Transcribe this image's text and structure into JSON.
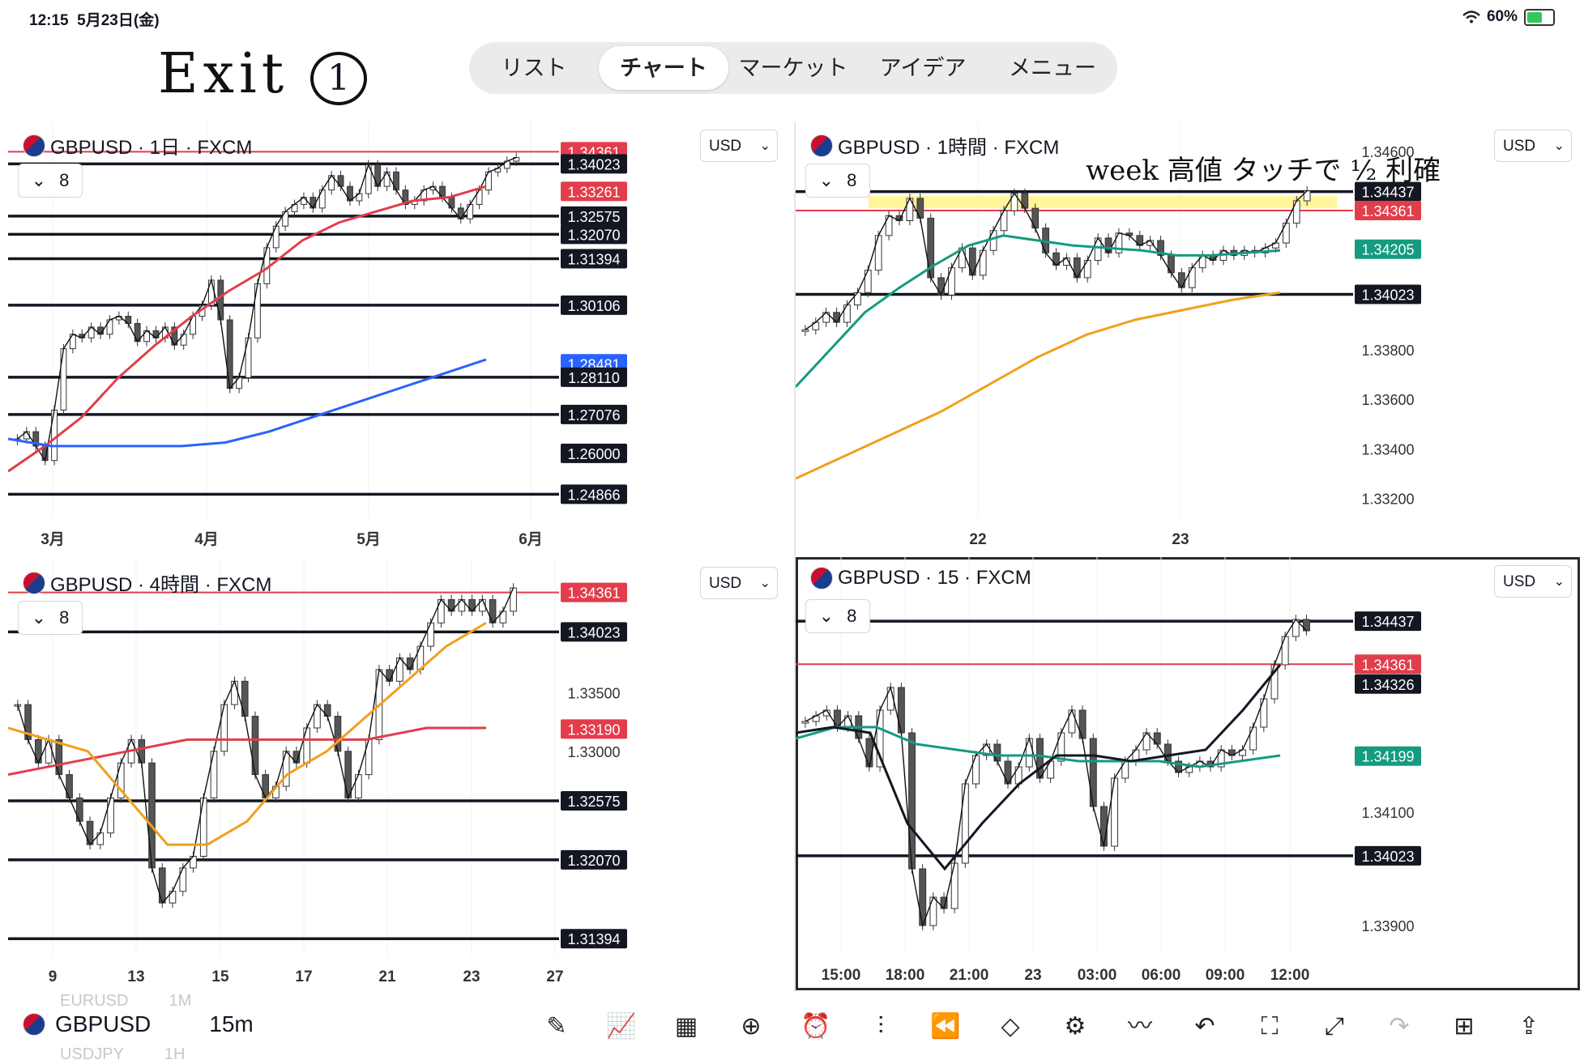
{
  "status": {
    "time": "12:15",
    "date": "5月23日(金)",
    "battery": "60%",
    "battery_level": 0.6
  },
  "annotations": {
    "title": "Exit",
    "circle_number": "1",
    "note": "week 高値 タッチで ½ 利確"
  },
  "tabs": [
    {
      "label": "リスト",
      "active": false
    },
    {
      "label": "チャート",
      "active": true
    },
    {
      "label": "マーケット",
      "active": false
    },
    {
      "label": "アイデア",
      "active": false
    },
    {
      "label": "メニュー",
      "active": false
    }
  ],
  "panels": [
    {
      "header": "GBPUSD · 1日 · FXCM",
      "currency": "USD",
      "collapse_count": "8"
    },
    {
      "header": "GBPUSD · 1時間 · FXCM",
      "currency": "USD",
      "collapse_count": "8"
    },
    {
      "header": "GBPUSD · 4時間 · FXCM",
      "currency": "USD",
      "collapse_count": "8"
    },
    {
      "header": "GBPUSD · 15 · FXCM",
      "currency": "USD",
      "collapse_count": "8"
    }
  ],
  "chart_data": [
    {
      "type": "candlestick",
      "title": "GBPUSD · 1日 · FXCM",
      "x_ticks": [
        "3月",
        "4月",
        "5月",
        "6月"
      ],
      "price_scale_labels": [
        "1.34361",
        "1.34023",
        "1.33261",
        "1.32575",
        "1.32070",
        "1.31394",
        "1.30106",
        "1.28481",
        "1.28110",
        "1.27076",
        "1.26000",
        "1.24866"
      ],
      "horizontal_levels": [
        1.34361,
        1.34023,
        1.32575,
        1.3207,
        1.31394,
        1.30106,
        1.2811,
        1.27076,
        1.24866
      ],
      "ylim": [
        1.242,
        1.352
      ],
      "close": [
        1.264,
        1.266,
        1.262,
        1.258,
        1.272,
        1.289,
        1.293,
        1.292,
        1.295,
        1.293,
        1.297,
        1.298,
        1.296,
        1.291,
        1.294,
        1.292,
        1.295,
        1.29,
        1.293,
        1.298,
        1.301,
        1.308,
        1.297,
        1.278,
        1.281,
        1.292,
        1.307,
        1.317,
        1.323,
        1.327,
        1.329,
        1.331,
        1.328,
        1.333,
        1.337,
        1.334,
        1.33,
        1.332,
        1.34,
        1.334,
        1.338,
        1.333,
        1.329,
        1.33,
        1.333,
        1.334,
        1.331,
        1.328,
        1.325,
        1.329,
        1.333,
        1.338,
        1.339,
        1.341,
        1.342
      ],
      "ma_red": [
        1.255,
        1.262,
        1.27,
        1.281,
        1.29,
        1.298,
        1.305,
        1.311,
        1.319,
        1.324,
        1.327,
        1.33,
        1.331,
        1.334
      ],
      "ma_blue": [
        1.264,
        1.262,
        1.262,
        1.262,
        1.262,
        1.263,
        1.266,
        1.27,
        1.274,
        1.278,
        1.282,
        1.286
      ]
    },
    {
      "type": "candlestick",
      "title": "GBPUSD · 1時間 · FXCM",
      "x_ticks": [
        "22",
        "23"
      ],
      "y_ticks": [
        "1.34600",
        "1.33800",
        "1.33600",
        "1.33400",
        "1.33200"
      ],
      "price_scale_labels": [
        "1.34437",
        "1.34361",
        "1.34205",
        "1.34023"
      ],
      "horizontal_levels": [
        1.34437,
        1.34361,
        1.34023
      ],
      "ylim": [
        1.3312,
        1.3472
      ],
      "close": [
        1.3388,
        1.3391,
        1.3395,
        1.3391,
        1.3398,
        1.3403,
        1.3412,
        1.3426,
        1.3434,
        1.3432,
        1.3441,
        1.3433,
        1.3409,
        1.3402,
        1.3413,
        1.3421,
        1.341,
        1.342,
        1.3428,
        1.3436,
        1.3443,
        1.3437,
        1.3429,
        1.3419,
        1.3414,
        1.3417,
        1.3409,
        1.3416,
        1.3425,
        1.3419,
        1.3427,
        1.3426,
        1.3422,
        1.3424,
        1.3418,
        1.3411,
        1.3405,
        1.3413,
        1.3418,
        1.3416,
        1.342,
        1.3418,
        1.342,
        1.3419,
        1.3421,
        1.3423,
        1.3431,
        1.344,
        1.3444
      ],
      "ma_green": [
        1.3365,
        1.338,
        1.3395,
        1.3405,
        1.3414,
        1.3422,
        1.3426,
        1.3424,
        1.3422,
        1.3421,
        1.342,
        1.3418,
        1.3418,
        1.3419,
        1.342
      ],
      "ma_orange": [
        1.3328,
        1.3337,
        1.3346,
        1.3355,
        1.3366,
        1.3377,
        1.3386,
        1.3392,
        1.3396,
        1.34,
        1.3403
      ]
    },
    {
      "type": "candlestick",
      "title": "GBPUSD · 4時間 · FXCM",
      "x_ticks": [
        "9",
        "13",
        "15",
        "17",
        "21",
        "23",
        "27"
      ],
      "y_ticks": [
        "1.33500",
        "1.33000"
      ],
      "price_scale_labels": [
        "1.34361",
        "1.34023",
        "1.33190",
        "1.32575",
        "1.32070",
        "1.31394"
      ],
      "horizontal_levels": [
        1.34361,
        1.34023,
        1.32575,
        1.3207,
        1.31394
      ],
      "ylim": [
        1.3125,
        1.3465
      ],
      "close": [
        1.334,
        1.331,
        1.329,
        1.331,
        1.328,
        1.326,
        1.324,
        1.322,
        1.323,
        1.326,
        1.329,
        1.331,
        1.329,
        1.32,
        1.317,
        1.318,
        1.32,
        1.321,
        1.326,
        1.33,
        1.334,
        1.336,
        1.333,
        1.328,
        1.326,
        1.327,
        1.33,
        1.329,
        1.332,
        1.334,
        1.333,
        1.33,
        1.326,
        1.328,
        1.331,
        1.337,
        1.336,
        1.338,
        1.337,
        1.339,
        1.341,
        1.343,
        1.342,
        1.343,
        1.342,
        1.343,
        1.341,
        1.342,
        1.344
      ],
      "ma_orange": [
        1.332,
        1.331,
        1.33,
        1.326,
        1.322,
        1.322,
        1.324,
        1.328,
        1.33,
        1.333,
        1.336,
        1.339,
        1.341
      ],
      "ma_red": [
        1.328,
        1.329,
        1.33,
        1.331,
        1.331,
        1.331,
        1.331,
        1.332,
        1.332
      ]
    },
    {
      "type": "candlestick",
      "title": "GBPUSD · 15 · FXCM",
      "x_ticks": [
        "15:00",
        "18:00",
        "21:00",
        "23",
        "03:00",
        "06:00",
        "09:00",
        "12:00"
      ],
      "y_ticks": [
        "1.34100",
        "1.33900"
      ],
      "price_scale_labels": [
        "1.34437",
        "1.34361",
        "1.34326",
        "1.34199",
        "1.34023"
      ],
      "horizontal_levels": [
        1.34437,
        1.34361,
        1.34023
      ],
      "ylim": [
        1.3385,
        1.3455
      ],
      "close": [
        1.3426,
        1.3427,
        1.3428,
        1.3425,
        1.3427,
        1.3423,
        1.3418,
        1.3428,
        1.3432,
        1.3424,
        1.34,
        1.339,
        1.3395,
        1.3393,
        1.3401,
        1.3415,
        1.342,
        1.3422,
        1.3419,
        1.3415,
        1.3418,
        1.3423,
        1.3416,
        1.3419,
        1.3424,
        1.3428,
        1.3423,
        1.3411,
        1.3404,
        1.3416,
        1.3419,
        1.3421,
        1.3424,
        1.3422,
        1.3419,
        1.3417,
        1.3418,
        1.3419,
        1.3418,
        1.3421,
        1.342,
        1.3421,
        1.3425,
        1.343,
        1.3436,
        1.3441,
        1.3444,
        1.3442
      ],
      "ma_green": [
        1.3423,
        1.3425,
        1.3425,
        1.3422,
        1.3421,
        1.342,
        1.342,
        1.3419,
        1.3419,
        1.3419,
        1.3418,
        1.3419,
        1.342
      ],
      "ma_black": [
        1.3424,
        1.3425,
        1.3424,
        1.3408,
        1.34,
        1.3408,
        1.3415,
        1.342,
        1.342,
        1.3419,
        1.342,
        1.3421,
        1.3428,
        1.3436
      ]
    }
  ],
  "bottom": {
    "symbol": "GBPUSD",
    "timeframe": "15m",
    "ghost_prev": "EURUSD",
    "ghost_prev_tf": "1M",
    "ghost_next": "USDJPY",
    "ghost_next_tf": "1H"
  },
  "toolbar": [
    {
      "name": "draw-tool-icon",
      "glyph": "✎"
    },
    {
      "name": "indicators-icon",
      "glyph": "📈"
    },
    {
      "name": "layout-grid-icon",
      "glyph": "▦"
    },
    {
      "name": "add-icon",
      "glyph": "⊕"
    },
    {
      "name": "alert-icon",
      "glyph": "⏰"
    },
    {
      "name": "chart-type-icon",
      "glyph": "⫶"
    },
    {
      "name": "replay-icon",
      "glyph": "⏪"
    },
    {
      "name": "layers-icon",
      "glyph": "◇"
    },
    {
      "name": "settings-sliders-icon",
      "glyph": "⚙"
    },
    {
      "name": "trend-tool-icon",
      "glyph": "〰"
    },
    {
      "name": "undo-icon",
      "glyph": "↶"
    },
    {
      "name": "fullscreen-icon",
      "glyph": "⛶"
    },
    {
      "name": "expand-icon",
      "glyph": "⤢"
    },
    {
      "name": "redo-icon",
      "glyph": "↷"
    },
    {
      "name": "watchlist-add-icon",
      "glyph": "⊞"
    },
    {
      "name": "share-icon",
      "glyph": "⇪"
    }
  ],
  "colors": {
    "red": "#e23d4b",
    "blue": "#2962ff",
    "green": "#149b80",
    "orange": "#f0a01c",
    "black": "#131722",
    "yellow_zone": "#fff27a"
  }
}
